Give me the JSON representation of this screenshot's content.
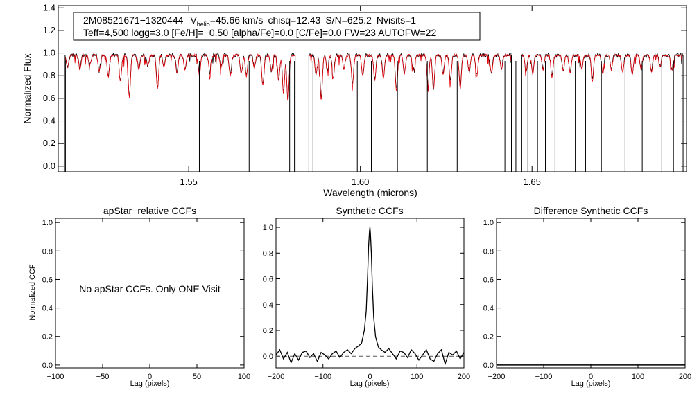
{
  "chart_data": [
    {
      "type": "line",
      "title": "",
      "xlabel": "Wavelength (microns)",
      "ylabel": "Normalized Flux",
      "xlim": [
        1.512,
        1.695
      ],
      "ylim": [
        -0.05,
        1.42
      ],
      "xticks": [
        1.55,
        1.6,
        1.65
      ],
      "xtick_labels": [
        "1.55",
        "1.60",
        "1.65"
      ],
      "yticks": [
        0.0,
        0.2,
        0.4,
        0.6,
        0.8,
        1.0,
        1.2,
        1.4
      ],
      "ytick_labels": [
        "0.0",
        "0.2",
        "0.4",
        "0.6",
        "0.8",
        "1.0",
        "1.2",
        "1.4"
      ],
      "info_box": {
        "star_id": "2M08521671−1320444",
        "vhelio_prefix": "V",
        "vhelio_sub": "helio",
        "vhelio_value": "=45.66 km/s",
        "chisq": "chisq=12.43",
        "snr": "S/N=625.2",
        "nvisits": "Nvisits=1",
        "params_line": "Teff=4,500 logg=3.0 [Fe/H]=−0.50 [alpha/Fe]=0.0 [C/Fe]=0.0 FW=23 AUTOFW=22"
      },
      "detector_ranges": [
        [
          1.514,
          1.581
        ],
        [
          1.585,
          1.644
        ],
        [
          1.647,
          1.694
        ]
      ],
      "continuum_level": 0.98,
      "absorption_lines": [
        [
          1.5147,
          0.88
        ],
        [
          1.5183,
          0.86
        ],
        [
          1.5212,
          0.9
        ],
        [
          1.5239,
          0.84
        ],
        [
          1.5266,
          0.8
        ],
        [
          1.5301,
          0.76
        ],
        [
          1.5327,
          0.63
        ],
        [
          1.5355,
          0.86
        ],
        [
          1.5381,
          0.89
        ],
        [
          1.5409,
          0.7
        ],
        [
          1.5428,
          0.88
        ],
        [
          1.5466,
          0.83
        ],
        [
          1.5489,
          0.86
        ],
        [
          1.5531,
          0.82
        ],
        [
          1.5561,
          0.85
        ],
        [
          1.5594,
          0.88
        ],
        [
          1.5621,
          0.81
        ],
        [
          1.5653,
          0.83
        ],
        [
          1.5668,
          0.8
        ],
        [
          1.5691,
          0.88
        ],
        [
          1.5716,
          0.72
        ],
        [
          1.5741,
          0.84
        ],
        [
          1.5762,
          0.77
        ],
        [
          1.5776,
          0.66
        ],
        [
          1.5789,
          0.59
        ],
        [
          1.5871,
          0.82
        ],
        [
          1.5886,
          0.6
        ],
        [
          1.5904,
          0.85
        ],
        [
          1.5921,
          0.79
        ],
        [
          1.5952,
          0.86
        ],
        [
          1.5977,
          0.74
        ],
        [
          1.6007,
          0.81
        ],
        [
          1.6042,
          0.76
        ],
        [
          1.6067,
          0.79
        ],
        [
          1.6105,
          0.68
        ],
        [
          1.6128,
          0.82
        ],
        [
          1.6155,
          0.86
        ],
        [
          1.6197,
          0.72
        ],
        [
          1.6213,
          0.69
        ],
        [
          1.6241,
          0.82
        ],
        [
          1.6262,
          0.76
        ],
        [
          1.6291,
          0.7
        ],
        [
          1.6317,
          0.84
        ],
        [
          1.6339,
          0.8
        ],
        [
          1.6382,
          0.83
        ],
        [
          1.6411,
          0.87
        ],
        [
          1.6483,
          0.85
        ],
        [
          1.6502,
          0.82
        ],
        [
          1.6532,
          0.86
        ],
        [
          1.6558,
          0.79
        ],
        [
          1.6591,
          0.85
        ],
        [
          1.6611,
          0.83
        ],
        [
          1.6645,
          0.87
        ],
        [
          1.6676,
          0.76
        ],
        [
          1.6706,
          0.82
        ],
        [
          1.6731,
          0.86
        ],
        [
          1.6764,
          0.84
        ],
        [
          1.6792,
          0.82
        ],
        [
          1.6818,
          0.86
        ],
        [
          1.6848,
          0.84
        ],
        [
          1.6873,
          0.88
        ],
        [
          1.6907,
          0.85
        ]
      ],
      "bad_pixel_drops": [
        1.5141,
        1.5531,
        1.5676,
        1.5794,
        1.5808,
        1.5862,
        1.5991,
        1.6032,
        1.6108,
        1.6195,
        1.6282,
        1.6421,
        1.6453,
        1.6488,
        1.6516,
        1.6539,
        1.6567,
        1.6626,
        1.6656,
        1.6702,
        1.6771,
        1.6821,
        1.6878,
        1.6912
      ],
      "series": [
        {
          "name": "observed",
          "color": "#000000"
        },
        {
          "name": "synthetic fit",
          "color": "#e8000b"
        }
      ]
    },
    {
      "type": "line",
      "title": "apStar−relative CCFs",
      "xlabel": "Lag (pixels)",
      "ylabel": "Normalized CCF",
      "xlim": [
        -100,
        100
      ],
      "ylim": [
        -0.02,
        1.03
      ],
      "xticks": [
        -100,
        -50,
        0,
        50,
        100
      ],
      "xtick_labels": [
        "−100",
        "−50",
        "0",
        "50",
        "100"
      ],
      "yticks": [
        0.0,
        0.2,
        0.4,
        0.6,
        0.8,
        1.0
      ],
      "ytick_labels": [
        "0.0",
        "0.2",
        "0.4",
        "0.6",
        "0.8",
        "1.0"
      ],
      "annotation": "No apStar CCFs.  Only ONE Visit",
      "series": []
    },
    {
      "type": "line",
      "title": "Synthetic CCFs",
      "xlabel": "Lag (pixels)",
      "ylabel": "",
      "xlim": [
        -200,
        200
      ],
      "ylim": [
        -0.09,
        1.07
      ],
      "xticks": [
        -200,
        -100,
        0,
        100,
        200
      ],
      "xtick_labels": [
        "−200",
        "−100",
        "0",
        "100",
        "200"
      ],
      "yticks": [
        0.0,
        0.2,
        0.4,
        0.6,
        0.8,
        1.0
      ],
      "ytick_labels": [
        "0.0",
        "0.2",
        "0.4",
        "0.6",
        "0.8",
        "1.0"
      ],
      "reference_line": 0.0,
      "series": [
        {
          "name": "synthetic ccf",
          "color": "#000000",
          "x": [
            -200,
            -192,
            -184,
            -176,
            -168,
            -160,
            -152,
            -144,
            -136,
            -128,
            -120,
            -112,
            -104,
            -96,
            -88,
            -80,
            -72,
            -64,
            -56,
            -48,
            -40,
            -32,
            -24,
            -18,
            -12,
            -8,
            -5,
            -3,
            -1,
            0,
            1,
            3,
            5,
            8,
            12,
            18,
            24,
            32,
            40,
            48,
            56,
            64,
            72,
            80,
            88,
            96,
            104,
            112,
            120,
            128,
            136,
            144,
            152,
            160,
            168,
            176,
            184,
            192,
            200
          ],
          "y": [
            0.01,
            0.05,
            -0.02,
            0.03,
            -0.05,
            0.02,
            -0.03,
            0.03,
            0.04,
            -0.01,
            0.02,
            -0.04,
            0.03,
            0.01,
            -0.02,
            0.02,
            0.04,
            -0.01,
            0.03,
            0.05,
            0.02,
            0.06,
            0.08,
            0.1,
            0.2,
            0.35,
            0.62,
            0.85,
            0.97,
            1.0,
            0.95,
            0.8,
            0.55,
            0.3,
            0.15,
            0.07,
            0.05,
            0.03,
            0.06,
            0.02,
            -0.02,
            0.04,
            0.03,
            -0.01,
            0.05,
            0.02,
            -0.03,
            0.01,
            0.05,
            -0.02,
            -0.04,
            0.02,
            0.05,
            -0.06,
            0.03,
            0.01,
            0.04,
            -0.02,
            0.03
          ]
        }
      ]
    },
    {
      "type": "line",
      "title": "Difference Synthetic CCFs",
      "xlabel": "Lag (pixels)",
      "ylabel": "",
      "xlim": [
        -200,
        200
      ],
      "ylim": [
        -0.02,
        1.03
      ],
      "xticks": [
        -200,
        -100,
        0,
        100,
        200
      ],
      "xtick_labels": [
        "−200",
        "−100",
        "0",
        "100",
        "200"
      ],
      "yticks": [
        0.0,
        0.2,
        0.4,
        0.6,
        0.8,
        1.0
      ],
      "ytick_labels": [
        "0.0",
        "0.2",
        "0.4",
        "0.6",
        "0.8",
        "1.0"
      ],
      "series": [
        {
          "name": "difference ccf",
          "color": "#000000",
          "x": [
            -200,
            200
          ],
          "y": [
            0.0,
            0.0
          ]
        }
      ]
    }
  ]
}
